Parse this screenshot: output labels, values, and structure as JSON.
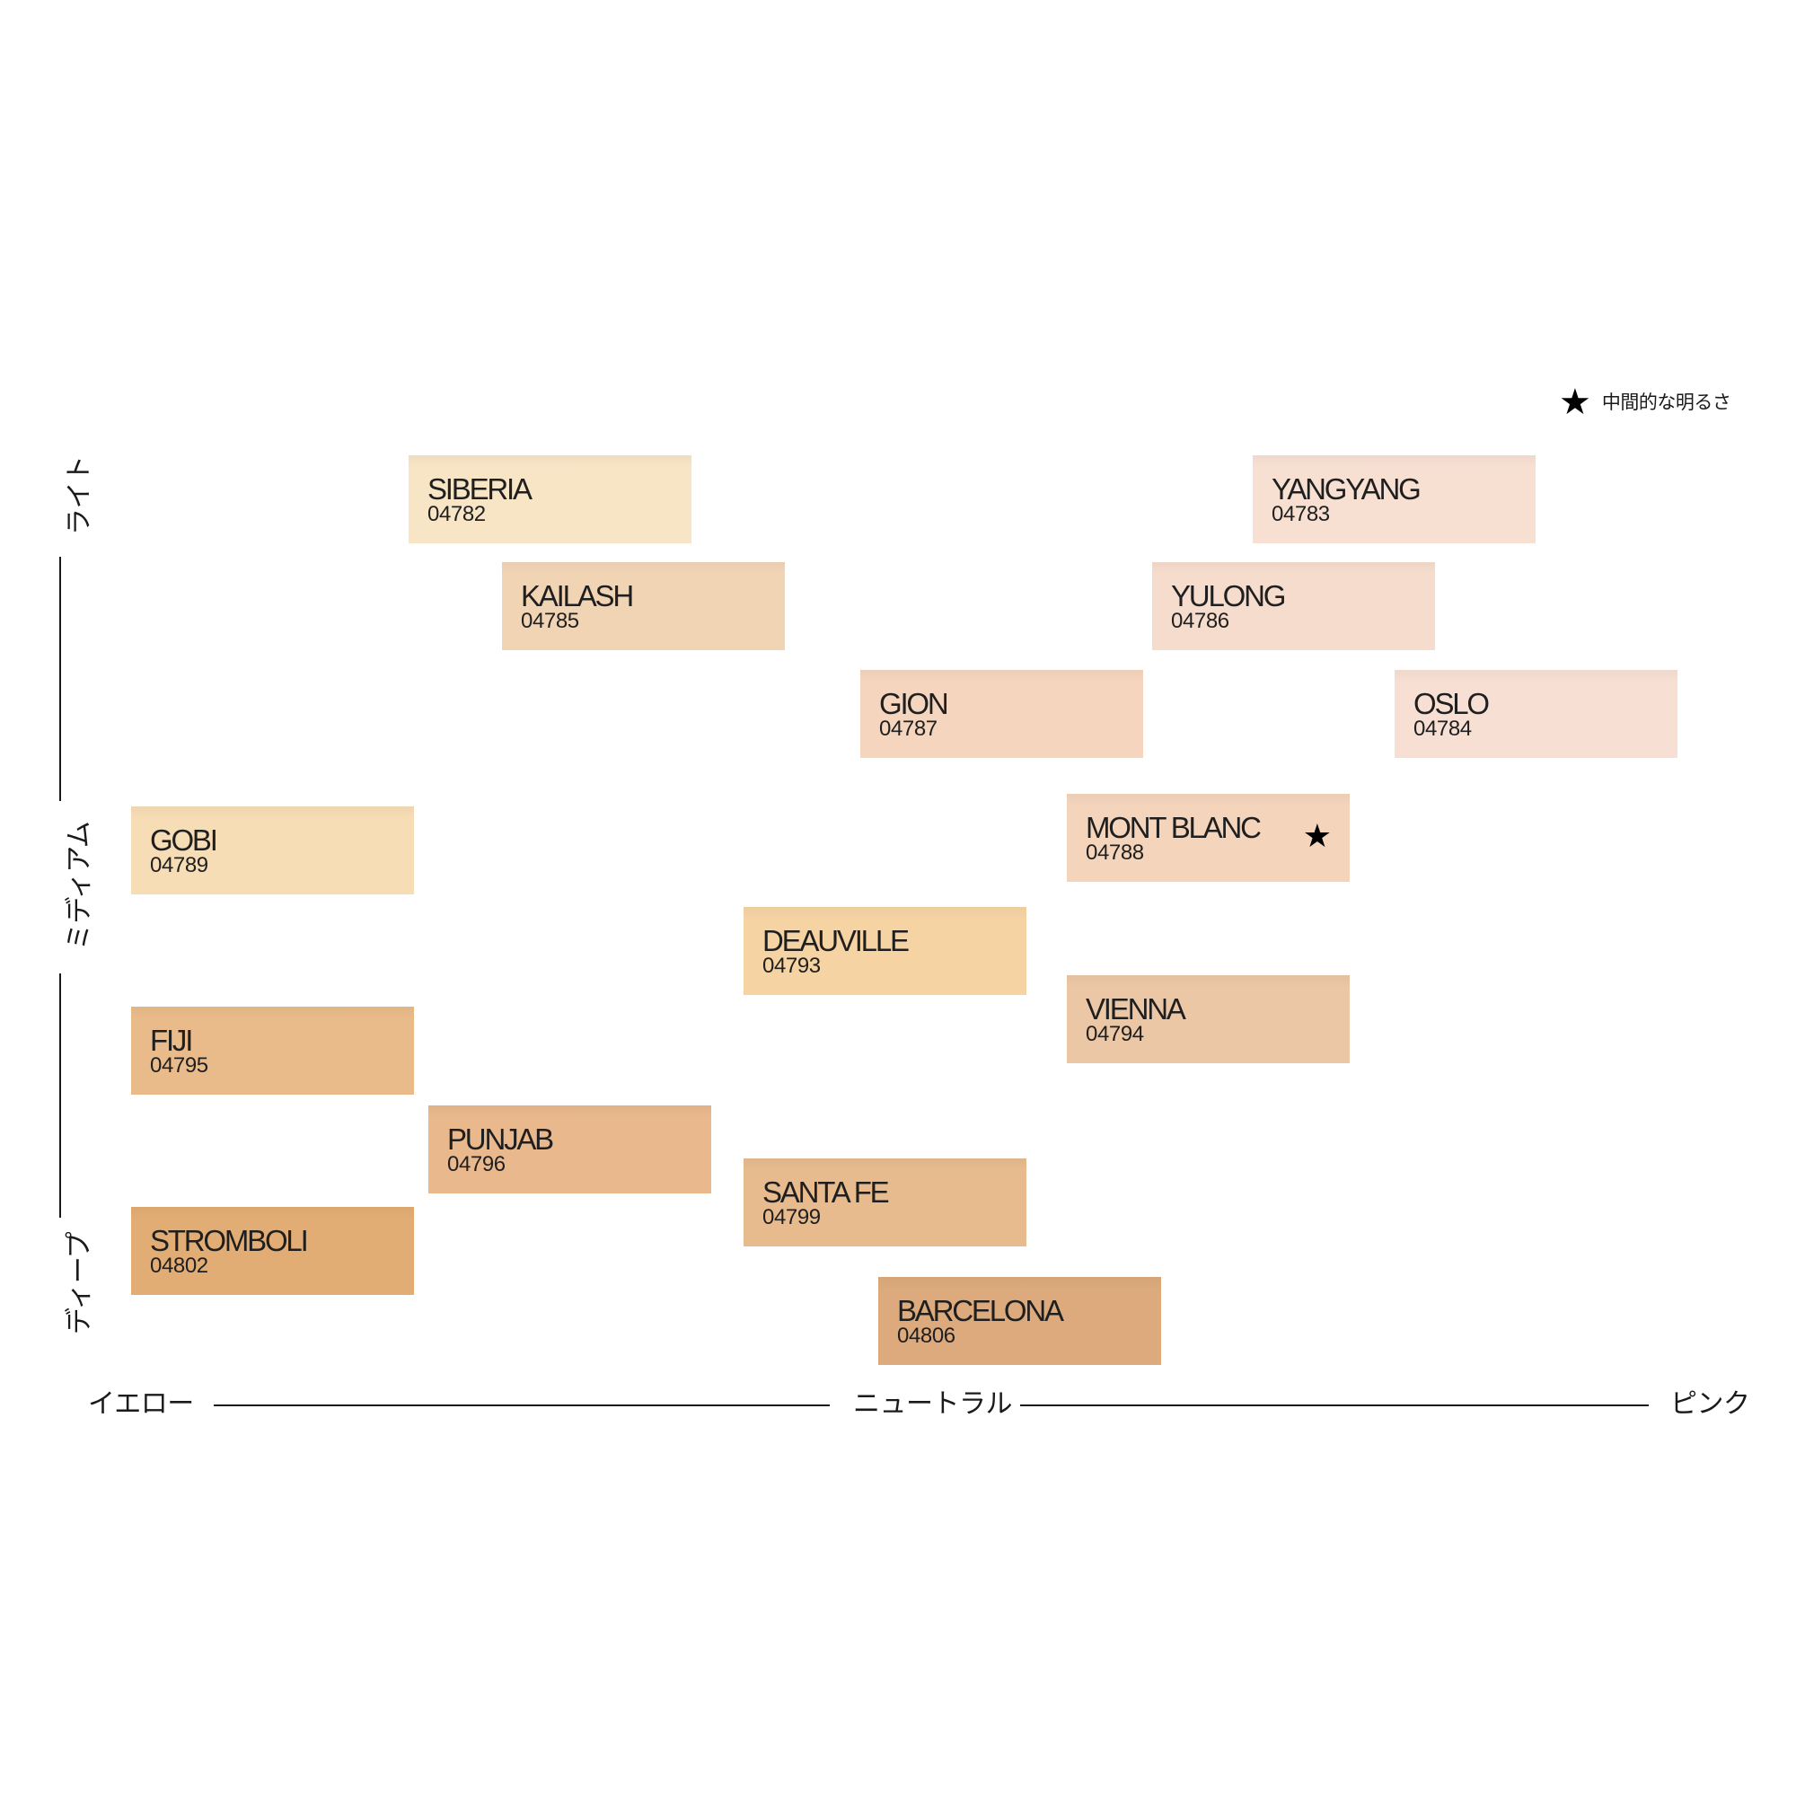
{
  "legend": {
    "star": "★",
    "text": "中間的な明るさ"
  },
  "axes": {
    "x_left": "イエロー",
    "x_center": "ニュートラル",
    "x_right": "ピンク",
    "y_top": "ライト",
    "y_middle": "ミディアム",
    "y_bottom": "ディープ"
  },
  "swatches": [
    {
      "name": "SIBERIA",
      "code": "04782",
      "color": "#f8e5c6",
      "star": ""
    },
    {
      "name": "YANGYANG",
      "code": "04783",
      "color": "#f7e0d2",
      "star": ""
    },
    {
      "name": "KAILASH",
      "code": "04785",
      "color": "#f1d4b4",
      "star": ""
    },
    {
      "name": "YULONG",
      "code": "04786",
      "color": "#f6dccc",
      "star": ""
    },
    {
      "name": "GION",
      "code": "04787",
      "color": "#f5d5bd",
      "star": ""
    },
    {
      "name": "OSLO",
      "code": "04784",
      "color": "#f7dfd3",
      "star": ""
    },
    {
      "name": "GOBI",
      "code": "04789",
      "color": "#f6ddb5",
      "star": ""
    },
    {
      "name": "MONT BLANC",
      "code": "04788",
      "color": "#f4d4bb",
      "star": "★"
    },
    {
      "name": "DEAUVILLE",
      "code": "04793",
      "color": "#f6d3a3",
      "star": ""
    },
    {
      "name": "VIENNA",
      "code": "04794",
      "color": "#ecc7a5",
      "star": ""
    },
    {
      "name": "FIJI",
      "code": "04795",
      "color": "#e9bb8a",
      "star": ""
    },
    {
      "name": "PUNJAB",
      "code": "04796",
      "color": "#e9b88d",
      "star": ""
    },
    {
      "name": "SANTA FE",
      "code": "04799",
      "color": "#e7bb8e",
      "star": ""
    },
    {
      "name": "STROMBOLI",
      "code": "04802",
      "color": "#e2ad74",
      "star": ""
    },
    {
      "name": "BARCELONA",
      "code": "04806",
      "color": "#dcaa7c",
      "star": ""
    }
  ]
}
